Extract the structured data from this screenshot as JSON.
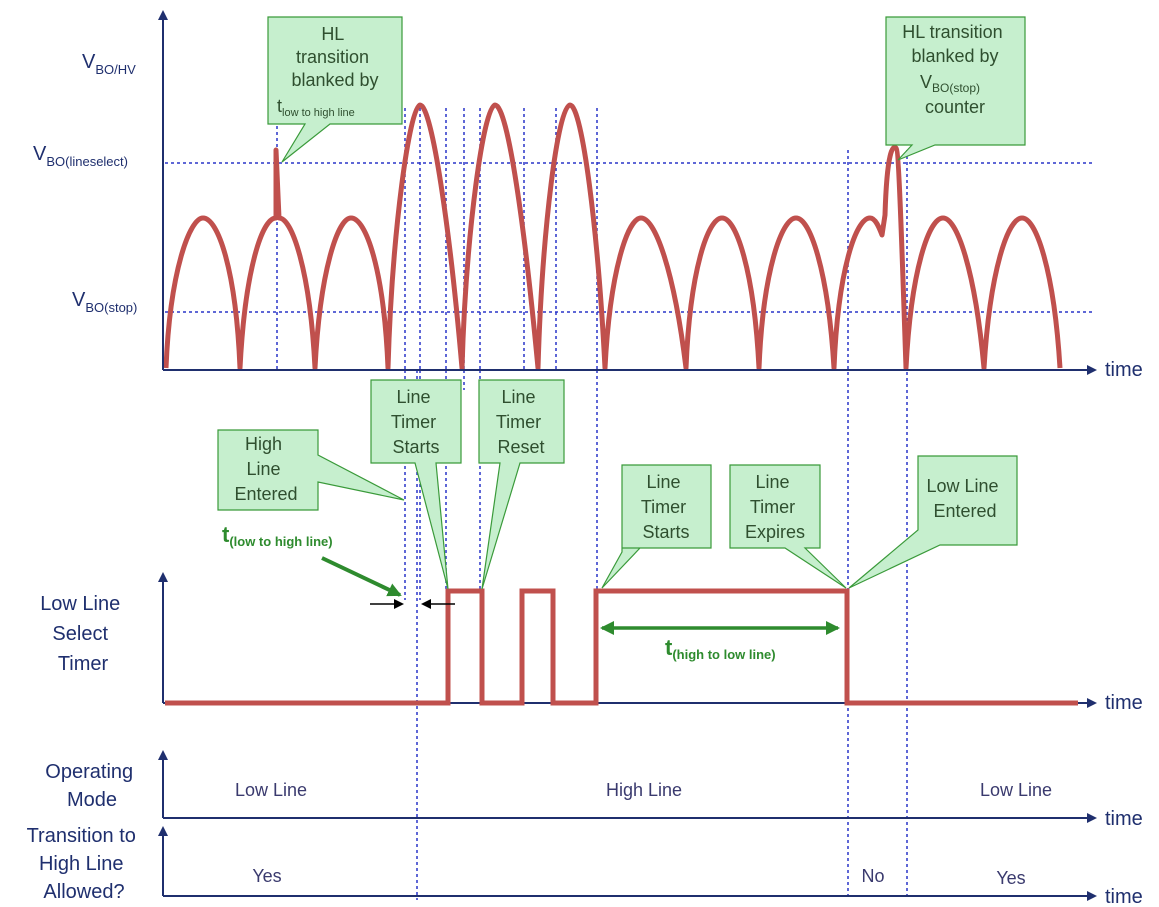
{
  "colors": {
    "axis": "#1f2f6e",
    "grid": "#2a35c8",
    "signal": "#c0504d",
    "callout_fill": "#c6efce",
    "callout_stroke": "#3a9a3a",
    "green": "#2e8b2e"
  },
  "axes": {
    "time_label": "time"
  },
  "voltage_levels": {
    "bo_hv": {
      "main": "V",
      "sub": "BO/HV"
    },
    "bo_lineselect": {
      "main": "V",
      "sub": "BO(lineselect)"
    },
    "bo_stop": {
      "main": "V",
      "sub": "BO(stop)"
    }
  },
  "callouts": {
    "hl_blanked_t": {
      "lines": [
        "HL",
        "transition",
        "blanked by"
      ],
      "t_main": "t",
      "t_sub": "low to high line"
    },
    "hl_blanked_v": {
      "lines": [
        "HL transition",
        "blanked by"
      ],
      "v_main": "V",
      "v_sub": "BO(stop)",
      "last": "counter"
    },
    "high_line_entered": {
      "lines": [
        "High",
        "Line",
        "Entered"
      ]
    },
    "line_timer_starts_1": {
      "lines": [
        "Line",
        "Timer",
        "Starts"
      ]
    },
    "line_timer_reset": {
      "lines": [
        "Line",
        "Timer",
        "Reset"
      ]
    },
    "line_timer_starts_2": {
      "lines": [
        "Line",
        "Timer",
        "Starts"
      ]
    },
    "line_timer_expires": {
      "lines": [
        "Line",
        "Timer",
        "Expires"
      ]
    },
    "low_line_entered": {
      "lines": [
        "Low Line",
        "Entered"
      ]
    }
  },
  "timer_panel": {
    "label_lines": [
      "Low Line",
      "Select",
      "Timer"
    ],
    "t_low_high": {
      "main": "t",
      "sub": "(low to high line)"
    },
    "t_high_low": {
      "main": "t",
      "sub": "(high to low line)"
    }
  },
  "mode_panel": {
    "label_lines": [
      "Operating",
      "Mode"
    ],
    "segments": [
      "Low Line",
      "High Line",
      "Low Line"
    ]
  },
  "transition_panel": {
    "label_lines": [
      "Transition to",
      "High Line",
      "Allowed?"
    ],
    "segments": [
      "Yes",
      "No",
      "Yes"
    ]
  }
}
